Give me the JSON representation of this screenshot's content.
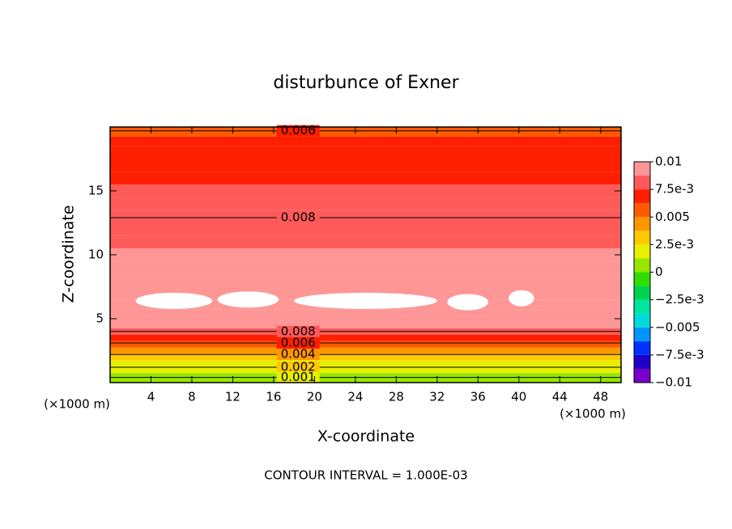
{
  "chart_data": {
    "type": "contour",
    "title": "disturbunce of Exner",
    "xlabel": "X-coordinate",
    "ylabel": "Z-coordinate",
    "xunit": "(×1000 m)",
    "yunit": "(×1000 m)",
    "note": "CONTOUR INTERVAL = 1.000E-03",
    "xlim": [
      0,
      50
    ],
    "xticks": [
      4,
      8,
      12,
      16,
      20,
      24,
      28,
      32,
      36,
      40,
      44,
      48
    ],
    "ylim": [
      0,
      20
    ],
    "yticks": [
      5,
      10,
      15
    ],
    "z": [
      0,
      0.5,
      1,
      1.5,
      2,
      2.5,
      3,
      3.5,
      4,
      4.5,
      5,
      5.5,
      6,
      7,
      8,
      9,
      10,
      11,
      12,
      13,
      14,
      15,
      16,
      17,
      18,
      19,
      19.5,
      20
    ],
    "values": [
      0.0003,
      0.0009,
      0.0015,
      0.0022,
      0.003,
      0.0038,
      0.0052,
      0.0068,
      0.0082,
      0.0092,
      0.0096,
      0.0099,
      0.0099,
      0.0098,
      0.0096,
      0.0093,
      0.0089,
      0.0087,
      0.0085,
      0.0082,
      0.008,
      0.0077,
      0.0074,
      0.0071,
      0.0068,
      0.0065,
      0.0062,
      0.006
    ],
    "max_regions": [
      [
        2.5,
        10,
        6.4
      ],
      [
        10.5,
        16.5,
        6.5
      ],
      [
        18,
        32,
        6.4
      ],
      [
        33,
        37,
        6.3
      ],
      [
        39,
        41.5,
        6.6
      ]
    ],
    "contours": [
      {
        "level": 0.006,
        "z": 19.7
      },
      {
        "level": 0.008,
        "z": 12.9
      },
      {
        "level": 0.008,
        "z": 4
      },
      {
        "level": 0.006,
        "z": 3.1
      },
      {
        "level": 0.004,
        "z": 2.2
      },
      {
        "level": 0.002,
        "z": 1.2
      },
      {
        "level": 0.001,
        "z": 0.4
      }
    ],
    "colorbar": {
      "lim": [
        -0.01,
        0.01
      ],
      "ticks": [
        0.01,
        {
          "value": 0.0075,
          "label": "7.5e-3"
        },
        0.005,
        {
          "value": 0.0025,
          "label": "2.5e-3"
        },
        0,
        {
          "value": -0.0025,
          "label": "−2.5e-3"
        },
        {
          "value": -0.005,
          "label": "−0.005"
        },
        {
          "value": -0.0075,
          "label": "−7.5e-3"
        },
        {
          "value": -0.01,
          "label": "−0.01"
        }
      ],
      "colors": [
        "#7800c8",
        "#1e00c8",
        "#0032ff",
        "#0096ff",
        "#00dcdc",
        "#00e6a0",
        "#00d250",
        "#32dc00",
        "#96e600",
        "#e6f000",
        "#ffc800",
        "#ff9600",
        "#ff5a00",
        "#ff1e00",
        "#ff5a5a",
        "#ff9696"
      ]
    }
  }
}
